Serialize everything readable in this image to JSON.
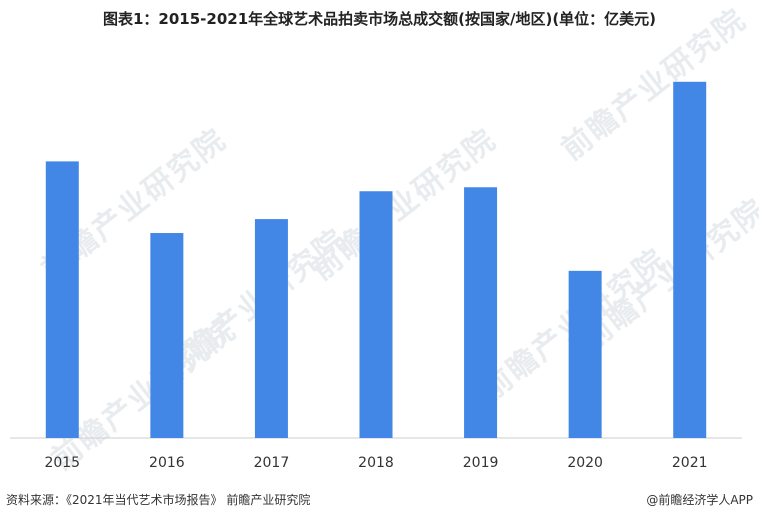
{
  "chart_data": {
    "type": "bar",
    "title": "图表1：2015-2021年全球艺术品拍卖市场总成交额(按国家/地区)(单位：亿美元)",
    "categories": [
      "2015",
      "2016",
      "2017",
      "2018",
      "2019",
      "2020",
      "2021"
    ],
    "values": [
      139,
      103,
      110,
      124,
      126,
      84,
      179
    ],
    "ylim": [
      0,
      200
    ],
    "grid": false,
    "color": "#4286e6"
  },
  "footer": {
    "source": "资料来源：《2021年当代艺术市场报告》 前瞻产业研究院",
    "credit": "@前瞻经济学人APP"
  },
  "watermark": "前瞻产业研究院"
}
